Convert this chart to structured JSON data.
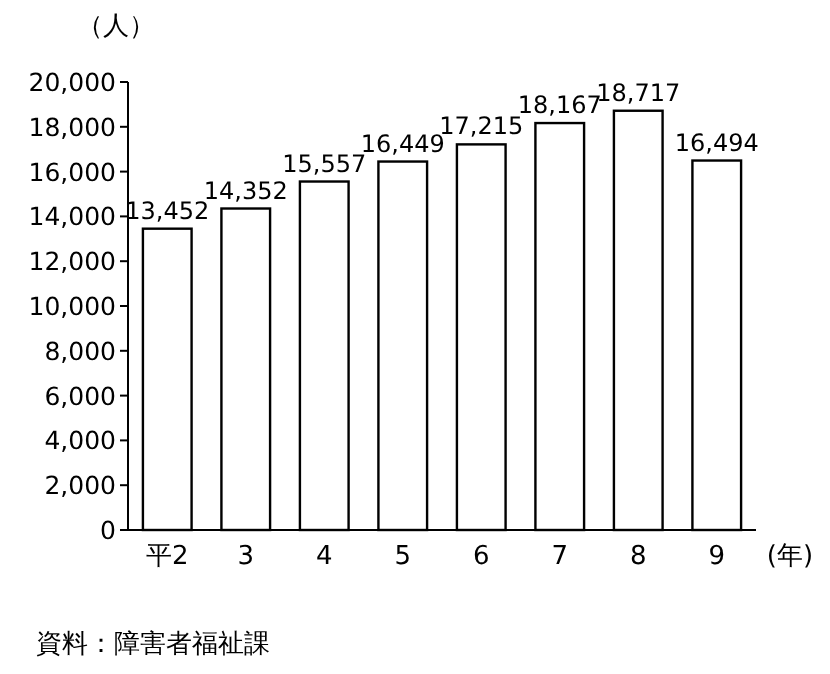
{
  "chart_data": {
    "type": "bar",
    "ylabel": "（人）",
    "xlabel": "(年)",
    "annotations": [
      "資料：障害者福祉課"
    ],
    "categories": [
      "平2",
      "3",
      "4",
      "5",
      "6",
      "7",
      "8",
      "9"
    ],
    "values": [
      13452,
      14352,
      15557,
      16449,
      17215,
      18167,
      18717,
      16494
    ],
    "value_labels": [
      "13,452",
      "14,352",
      "15,557",
      "16,449",
      "17,215",
      "18,167",
      "18,717",
      "16,494"
    ],
    "color": "#ffffff",
    "ylim": [
      0,
      20000
    ],
    "yticks": [
      {
        "value": 0,
        "label": "0"
      },
      {
        "value": 2000,
        "label": "2,000"
      },
      {
        "value": 4000,
        "label": "4,000"
      },
      {
        "value": 6000,
        "label": "6,000"
      },
      {
        "value": 8000,
        "label": "8,000"
      },
      {
        "value": 10000,
        "label": "10,000"
      },
      {
        "value": 12000,
        "label": "12,000"
      },
      {
        "value": 14000,
        "label": "14,000"
      },
      {
        "value": 16000,
        "label": "16,000"
      },
      {
        "value": 18000,
        "label": "18,000"
      },
      {
        "value": 20000,
        "label": "20,000"
      }
    ],
    "grid": false
  }
}
